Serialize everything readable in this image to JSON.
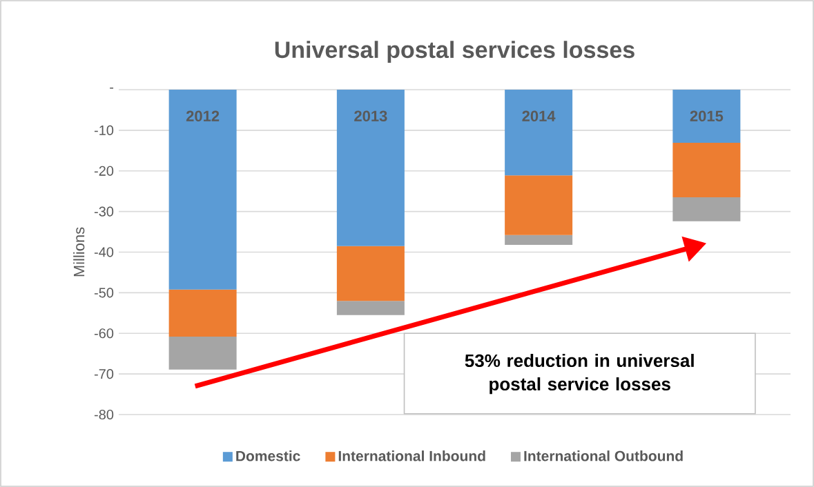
{
  "chart_data": {
    "type": "bar",
    "title": "Universal postal services losses",
    "ylabel": "Millions",
    "categories": [
      "2012",
      "2013",
      "2014",
      "2015"
    ],
    "stacked": true,
    "series": [
      {
        "name": "Domestic",
        "color": "#5b9bd5",
        "values": [
          -49.2,
          -38.5,
          -21.1,
          -13.1
        ]
      },
      {
        "name": "International Inbound",
        "color": "#ed7d31",
        "values": [
          -11.6,
          -13.5,
          -14.7,
          -13.4
        ]
      },
      {
        "name": "International Outbound",
        "color": "#a5a5a5",
        "values": [
          -8.1,
          -3.5,
          -2.4,
          -5.9
        ]
      }
    ],
    "ylim": [
      -80,
      0
    ],
    "yticks": [
      {
        "value": 0,
        "label": "-"
      },
      -10,
      -20,
      -30,
      -40,
      -50,
      -60,
      -70,
      -80
    ],
    "grid": "y",
    "legend": "bottom",
    "annotations": [
      "53% reduction in universal postal service losses"
    ]
  }
}
